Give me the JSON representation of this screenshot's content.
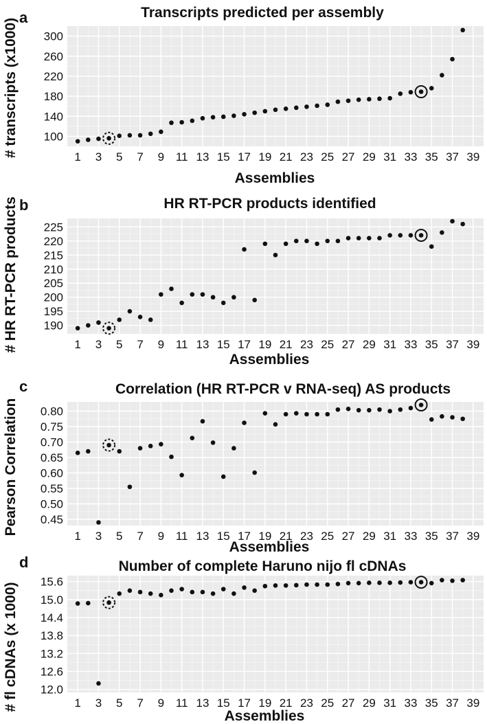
{
  "chart_data": [
    {
      "panel": "a",
      "type": "scatter",
      "title": "Transcripts predicted per assembly",
      "xlabel": "Assemblies",
      "ylabel": "# transcripts (x1000)",
      "x": [
        1,
        2,
        3,
        4,
        5,
        6,
        7,
        8,
        9,
        10,
        11,
        12,
        13,
        14,
        15,
        16,
        17,
        18,
        19,
        20,
        21,
        22,
        23,
        24,
        25,
        26,
        27,
        28,
        29,
        30,
        31,
        32,
        33,
        34,
        35,
        36,
        37,
        38
      ],
      "values": [
        90,
        93,
        95,
        96,
        101,
        102,
        102,
        105,
        109,
        127,
        128,
        131,
        136,
        138,
        139,
        141,
        144,
        147,
        150,
        153,
        155,
        157,
        159,
        161,
        163,
        169,
        171,
        173,
        174,
        175,
        176,
        185,
        188,
        189,
        196,
        222,
        254,
        312
      ],
      "ylim": [
        80,
        320
      ],
      "yticks": [
        100,
        140,
        180,
        220,
        260,
        300
      ],
      "xlim": [
        0,
        40
      ],
      "xticks": [
        1,
        3,
        5,
        7,
        9,
        11,
        13,
        15,
        17,
        19,
        21,
        23,
        25,
        27,
        29,
        31,
        33,
        35,
        37,
        39
      ],
      "highlight_dashed": 4,
      "highlight_solid": 34
    },
    {
      "panel": "b",
      "type": "scatter",
      "title": "HR RT-PCR products identified",
      "xlabel": "Assemblies",
      "ylabel": "# HR RT-PCR products",
      "x": [
        1,
        2,
        3,
        4,
        5,
        6,
        7,
        8,
        9,
        10,
        11,
        12,
        13,
        14,
        15,
        16,
        17,
        18,
        19,
        20,
        21,
        22,
        23,
        24,
        25,
        26,
        27,
        28,
        29,
        30,
        31,
        32,
        33,
        34,
        35,
        36,
        37,
        38
      ],
      "values": [
        189,
        190,
        191,
        189,
        192,
        195,
        193,
        192,
        201,
        203,
        198,
        201,
        201,
        200,
        198,
        200,
        217,
        199,
        219,
        215,
        219,
        220,
        220,
        219,
        220,
        220,
        221,
        221,
        221,
        221,
        222,
        222,
        222,
        222,
        218,
        223,
        227,
        226
      ],
      "ylim": [
        187,
        228
      ],
      "yticks": [
        190,
        195,
        200,
        205,
        210,
        215,
        220,
        225
      ],
      "xlim": [
        0,
        40
      ],
      "xticks": [
        1,
        3,
        5,
        7,
        9,
        11,
        13,
        15,
        17,
        19,
        21,
        23,
        25,
        27,
        29,
        31,
        33,
        35,
        37,
        39
      ],
      "highlight_dashed": 4,
      "highlight_solid": 34
    },
    {
      "panel": "c",
      "type": "scatter",
      "title": "Correlation (HR RT-PCR v RNA-seq) AS products",
      "xlabel": "Assemblies",
      "ylabel": "Pearson Correlation",
      "x": [
        1,
        2,
        3,
        4,
        5,
        6,
        7,
        8,
        9,
        10,
        11,
        12,
        13,
        14,
        15,
        16,
        17,
        18,
        19,
        20,
        21,
        22,
        23,
        24,
        25,
        26,
        27,
        28,
        29,
        30,
        31,
        32,
        33,
        34,
        35,
        36,
        37,
        38
      ],
      "values": [
        0.665,
        0.67,
        0.44,
        0.69,
        0.67,
        0.555,
        0.68,
        0.687,
        0.693,
        0.652,
        0.593,
        0.713,
        0.767,
        0.698,
        0.588,
        0.68,
        0.762,
        0.601,
        0.793,
        0.757,
        0.79,
        0.793,
        0.79,
        0.79,
        0.79,
        0.805,
        0.807,
        0.803,
        0.803,
        0.805,
        0.8,
        0.805,
        0.81,
        0.82,
        0.773,
        0.783,
        0.78,
        0.775
      ],
      "ylim": [
        0.43,
        0.83
      ],
      "yticks": [
        0.45,
        0.5,
        0.55,
        0.6,
        0.65,
        0.7,
        0.75,
        0.8
      ],
      "xlim": [
        0,
        40
      ],
      "xticks": [
        1,
        3,
        5,
        7,
        9,
        11,
        13,
        15,
        17,
        19,
        21,
        23,
        25,
        27,
        29,
        31,
        33,
        35,
        37,
        39
      ],
      "highlight_dashed": 4,
      "highlight_solid": 34
    },
    {
      "panel": "d",
      "type": "scatter",
      "title": "Number of complete Haruno nijo fl cDNAs",
      "xlabel": "Assemblies",
      "ylabel": "# fl cDNAs (x 1000)",
      "x": [
        1,
        2,
        3,
        4,
        5,
        6,
        7,
        8,
        9,
        10,
        11,
        12,
        13,
        14,
        15,
        16,
        17,
        18,
        19,
        20,
        21,
        22,
        23,
        24,
        25,
        26,
        27,
        28,
        29,
        30,
        31,
        32,
        33,
        34,
        35,
        36,
        37,
        38
      ],
      "values": [
        14.87,
        14.88,
        12.2,
        14.9,
        15.2,
        15.3,
        15.25,
        15.2,
        15.15,
        15.3,
        15.35,
        15.25,
        15.25,
        15.2,
        15.35,
        15.2,
        15.4,
        15.3,
        15.45,
        15.47,
        15.47,
        15.48,
        15.5,
        15.5,
        15.5,
        15.52,
        15.55,
        15.55,
        15.56,
        15.56,
        15.56,
        15.57,
        15.58,
        15.58,
        15.55,
        15.65,
        15.63,
        15.65
      ],
      "ylim": [
        11.9,
        15.8
      ],
      "yticks": [
        12.0,
        12.6,
        13.2,
        13.8,
        14.4,
        15.0,
        15.6
      ],
      "xlim": [
        0,
        40
      ],
      "xticks": [
        1,
        3,
        5,
        7,
        9,
        11,
        13,
        15,
        17,
        19,
        21,
        23,
        25,
        27,
        29,
        31,
        33,
        35,
        37,
        39
      ],
      "highlight_dashed": 4,
      "highlight_solid": 34
    }
  ]
}
